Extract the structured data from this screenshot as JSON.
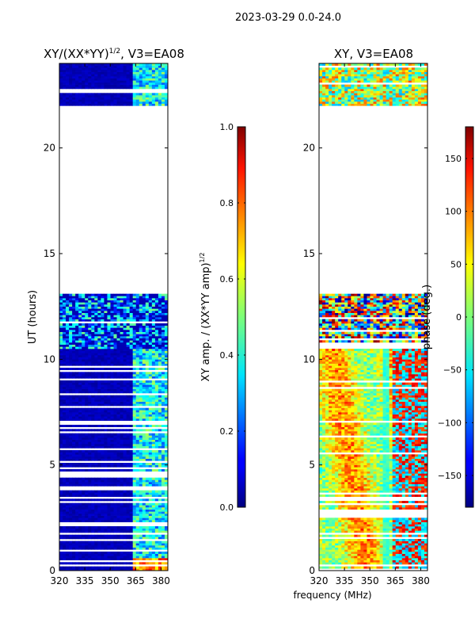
{
  "suptitle": "2023-03-29 0.0-24.0",
  "shared_xlabel": "frequency (MHz)",
  "chart_data": [
    {
      "type": "heatmap",
      "title_main": "XY/(XX*YY)",
      "title_sup": "1/2",
      "title_tail": ", V3=EA08",
      "ylabel": "UT (hours)",
      "xlim": [
        320,
        384
      ],
      "ylim": [
        0,
        24
      ],
      "xticks": [
        320,
        335,
        350,
        365,
        380
      ],
      "yticks": [
        0,
        5,
        10,
        15,
        20
      ],
      "colorbar": {
        "label_main": "XY amp. / (XX*YY amp)",
        "label_sup": "1/2",
        "range": [
          0.0,
          1.0
        ],
        "ticks": [
          "0.0",
          "0.2",
          "0.4",
          "0.6",
          "0.8",
          "1.0"
        ],
        "tick_values": [
          0.0,
          0.2,
          0.4,
          0.6,
          0.8,
          1.0
        ],
        "colormap": "jet"
      },
      "data_coverage_hours": [
        [
          0,
          13.1
        ],
        [
          22,
          24
        ]
      ],
      "rfi_band_mhz": [
        363,
        384
      ]
    },
    {
      "type": "heatmap",
      "title": "XY, V3=EA08",
      "xlim": [
        320,
        384
      ],
      "ylim": [
        0,
        24
      ],
      "xticks": [
        320,
        335,
        350,
        365,
        380
      ],
      "yticks": [
        0,
        5,
        10,
        15,
        20
      ],
      "colorbar": {
        "label": "phase (deg.)",
        "range": [
          -180,
          180
        ],
        "ticks": [
          "150",
          "100",
          "50",
          "0",
          "−50",
          "−100",
          "−150"
        ],
        "tick_values": [
          150,
          100,
          50,
          0,
          -50,
          -100,
          -150
        ],
        "colormap": "jet"
      },
      "data_coverage_hours": [
        [
          0,
          13.1
        ],
        [
          22,
          24
        ]
      ]
    }
  ]
}
